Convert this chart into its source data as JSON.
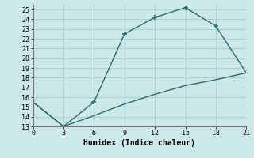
{
  "xlabel": "Humidex (Indice chaleur)",
  "line1_x": [
    0,
    3,
    6,
    9,
    12,
    15,
    18,
    21
  ],
  "line1_y": [
    15.5,
    13.0,
    15.5,
    22.5,
    24.2,
    25.2,
    23.3,
    18.5
  ],
  "line1_marker_x": [
    6,
    9,
    12,
    15,
    18
  ],
  "line1_marker_y": [
    15.5,
    22.5,
    24.2,
    25.2,
    23.3
  ],
  "line2_x": [
    0,
    3,
    6,
    9,
    12,
    15,
    18,
    21
  ],
  "line2_y": [
    15.5,
    13.0,
    14.1,
    15.3,
    16.3,
    17.2,
    17.8,
    18.5
  ],
  "line_color": "#2d6b6b",
  "bg_color": "#cce8e8",
  "grid_color": "#aad4d4",
  "xlim": [
    0,
    21
  ],
  "ylim": [
    13,
    25.5
  ],
  "xticks": [
    0,
    3,
    6,
    9,
    12,
    15,
    18,
    21
  ],
  "yticks": [
    13,
    14,
    15,
    16,
    17,
    18,
    19,
    20,
    21,
    22,
    23,
    24,
    25
  ]
}
